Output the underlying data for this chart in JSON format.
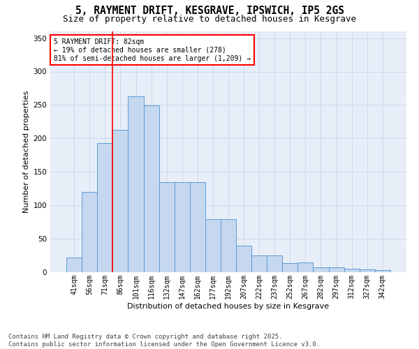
{
  "title": "5, RAYMENT DRIFT, KESGRAVE, IPSWICH, IP5 2GS",
  "subtitle": "Size of property relative to detached houses in Kesgrave",
  "xlabel": "Distribution of detached houses by size in Kesgrave",
  "ylabel": "Number of detached properties",
  "footer_line1": "Contains HM Land Registry data © Crown copyright and database right 2025.",
  "footer_line2": "Contains public sector information licensed under the Open Government Licence v3.0.",
  "categories": [
    "41sqm",
    "56sqm",
    "71sqm",
    "86sqm",
    "101sqm",
    "116sqm",
    "132sqm",
    "147sqm",
    "162sqm",
    "177sqm",
    "192sqm",
    "207sqm",
    "222sqm",
    "237sqm",
    "252sqm",
    "267sqm",
    "282sqm",
    "297sqm",
    "312sqm",
    "327sqm",
    "342sqm"
  ],
  "values": [
    22,
    120,
    193,
    213,
    263,
    249,
    135,
    135,
    135,
    79,
    79,
    40,
    25,
    25,
    14,
    15,
    7,
    7,
    5,
    4,
    3
  ],
  "bar_color": "#c5d8f0",
  "bar_edge_color": "#5b9bd5",
  "vline_color": "red",
  "vline_x": 2.5,
  "annotation_text": "5 RAYMENT DRIFT: 82sqm\n← 19% of detached houses are smaller (278)\n81% of semi-detached houses are larger (1,209) →",
  "annotation_box_color": "white",
  "annotation_box_edge_color": "red",
  "ylim": [
    0,
    360
  ],
  "yticks": [
    0,
    50,
    100,
    150,
    200,
    250,
    300,
    350
  ],
  "grid_color": "#c8d4e8",
  "bg_color": "#e8eef8",
  "title_fontsize": 10.5,
  "subtitle_fontsize": 9,
  "axis_label_fontsize": 8,
  "tick_fontsize": 7,
  "annotation_fontsize": 7,
  "footer_fontsize": 6.5
}
